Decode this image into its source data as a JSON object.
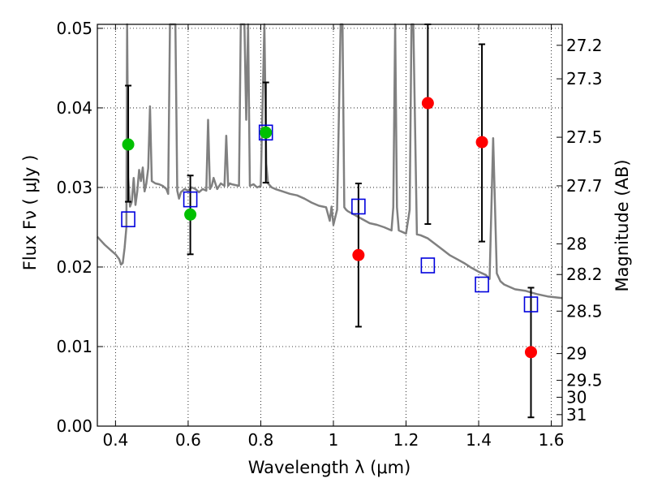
{
  "chart_data": {
    "type": "scatter",
    "xlabel": "Wavelength  λ (μm)",
    "ylabel": "Flux  Fν  ( μJy )",
    "ylabel_right": "Magnitude (AB)",
    "xlim": [
      0.35,
      1.63
    ],
    "ylim": [
      0.0,
      0.0505
    ],
    "grid": true,
    "x_ticks": [
      {
        "value": 0.4,
        "label": "0.4"
      },
      {
        "value": 0.6,
        "label": "0.6"
      },
      {
        "value": 0.8,
        "label": "0.8"
      },
      {
        "value": 1.0,
        "label": "1"
      },
      {
        "value": 1.2,
        "label": "1.2"
      },
      {
        "value": 1.4,
        "label": "1.4"
      },
      {
        "value": 1.6,
        "label": "1.6"
      }
    ],
    "y_ticks": [
      {
        "value": 0.0,
        "label": "0.00"
      },
      {
        "value": 0.01,
        "label": "0.01"
      },
      {
        "value": 0.02,
        "label": "0.02"
      },
      {
        "value": 0.03,
        "label": "0.03"
      },
      {
        "value": 0.04,
        "label": "0.04"
      },
      {
        "value": 0.05,
        "label": "0.05"
      }
    ],
    "right_ticks": [
      {
        "mag": 27.2,
        "label": "27.2"
      },
      {
        "mag": 27.3,
        "label": "27.3"
      },
      {
        "mag": 27.5,
        "label": "27.5"
      },
      {
        "mag": 27.7,
        "label": "27.7"
      },
      {
        "mag": 28.0,
        "label": "28"
      },
      {
        "mag": 28.2,
        "label": "28.2"
      },
      {
        "mag": 28.5,
        "label": "28.5"
      },
      {
        "mag": 29.0,
        "label": "29"
      },
      {
        "mag": 29.5,
        "label": "29.5"
      },
      {
        "mag": 30.0,
        "label": "30"
      },
      {
        "mag": 31.0,
        "label": "31"
      }
    ],
    "series": [
      {
        "marker": "circle",
        "color": "#00c000",
        "points": [
          {
            "x": 0.435,
            "y": 0.0354,
            "ylo": 0.0282,
            "yhi": 0.0428
          },
          {
            "x": 0.606,
            "y": 0.0266,
            "ylo": 0.0216,
            "yhi": 0.0315
          },
          {
            "x": 0.814,
            "y": 0.0369,
            "ylo": 0.0306,
            "yhi": 0.0432
          }
        ]
      },
      {
        "marker": "circle",
        "color": "#ff0000",
        "points": [
          {
            "x": 1.069,
            "y": 0.0215,
            "ylo": 0.0125,
            "yhi": 0.0305
          },
          {
            "x": 1.26,
            "y": 0.0406,
            "ylo": 0.0254,
            "yhi": 0.0505
          },
          {
            "x": 1.409,
            "y": 0.0357,
            "ylo": 0.0232,
            "yhi": 0.048
          },
          {
            "x": 1.544,
            "y": 0.0093,
            "ylo": 0.0011,
            "yhi": 0.0174
          }
        ]
      },
      {
        "marker": "open-square",
        "color": "#0000dd",
        "points": [
          {
            "x": 0.435,
            "y": 0.026
          },
          {
            "x": 0.606,
            "y": 0.0285
          },
          {
            "x": 0.814,
            "y": 0.0369
          },
          {
            "x": 1.069,
            "y": 0.0276
          },
          {
            "x": 1.26,
            "y": 0.0202
          },
          {
            "x": 1.409,
            "y": 0.0178
          },
          {
            "x": 1.544,
            "y": 0.0153
          }
        ]
      }
    ],
    "sed_spectrum": {
      "color": "#808080",
      "x": [
        0.35,
        0.37,
        0.39,
        0.4,
        0.41,
        0.415,
        0.42,
        0.425,
        0.43,
        0.432,
        0.435,
        0.44,
        0.445,
        0.45,
        0.455,
        0.46,
        0.465,
        0.47,
        0.475,
        0.48,
        0.485,
        0.49,
        0.495,
        0.5,
        0.51,
        0.52,
        0.53,
        0.54,
        0.545,
        0.55,
        0.555,
        0.56,
        0.565,
        0.57,
        0.575,
        0.58,
        0.59,
        0.6,
        0.61,
        0.62,
        0.63,
        0.64,
        0.65,
        0.655,
        0.66,
        0.665,
        0.67,
        0.68,
        0.69,
        0.7,
        0.705,
        0.71,
        0.715,
        0.72,
        0.73,
        0.74,
        0.745,
        0.75,
        0.755,
        0.76,
        0.765,
        0.77,
        0.78,
        0.79,
        0.8,
        0.81,
        0.815,
        0.82,
        0.83,
        0.84,
        0.86,
        0.88,
        0.9,
        0.92,
        0.94,
        0.96,
        0.98,
        0.99,
        0.995,
        1.0,
        1.01,
        1.02,
        1.025,
        1.03,
        1.035,
        1.04,
        1.06,
        1.08,
        1.1,
        1.12,
        1.14,
        1.16,
        1.165,
        1.17,
        1.175,
        1.18,
        1.2,
        1.21,
        1.215,
        1.22,
        1.23,
        1.24,
        1.26,
        1.28,
        1.3,
        1.32,
        1.34,
        1.36,
        1.38,
        1.4,
        1.42,
        1.43,
        1.44,
        1.45,
        1.46,
        1.47,
        1.48,
        1.5,
        1.53,
        1.56,
        1.59,
        1.63
      ],
      "y": [
        0.0238,
        0.0228,
        0.022,
        0.0216,
        0.021,
        0.0203,
        0.0205,
        0.0224,
        0.025,
        0.0505,
        0.0312,
        0.0276,
        0.0282,
        0.0312,
        0.0278,
        0.0295,
        0.0322,
        0.0308,
        0.0325,
        0.0295,
        0.0305,
        0.0324,
        0.0402,
        0.0308,
        0.0305,
        0.0304,
        0.0302,
        0.0298,
        0.0292,
        0.0505,
        0.0505,
        0.0505,
        0.0505,
        0.0296,
        0.0286,
        0.0294,
        0.0298,
        0.0296,
        0.03,
        0.0298,
        0.0294,
        0.0298,
        0.0296,
        0.0385,
        0.0298,
        0.0302,
        0.0312,
        0.0298,
        0.0305,
        0.0302,
        0.0365,
        0.0302,
        0.0305,
        0.0304,
        0.0303,
        0.0302,
        0.0505,
        0.0505,
        0.0505,
        0.0385,
        0.0505,
        0.0302,
        0.0304,
        0.03,
        0.0302,
        0.0505,
        0.033,
        0.0305,
        0.03,
        0.0298,
        0.0295,
        0.0292,
        0.029,
        0.0286,
        0.0281,
        0.0277,
        0.0275,
        0.0258,
        0.0276,
        0.0253,
        0.0272,
        0.0505,
        0.0505,
        0.0275,
        0.0272,
        0.027,
        0.0265,
        0.026,
        0.0255,
        0.0253,
        0.025,
        0.0246,
        0.0275,
        0.0505,
        0.0275,
        0.0246,
        0.0242,
        0.0272,
        0.0505,
        0.0505,
        0.0241,
        0.024,
        0.0236,
        0.0229,
        0.0222,
        0.0215,
        0.021,
        0.0205,
        0.0199,
        0.0194,
        0.019,
        0.0185,
        0.0362,
        0.0192,
        0.0182,
        0.0178,
        0.0176,
        0.0172,
        0.017,
        0.0166,
        0.0163,
        0.0161
      ]
    }
  }
}
